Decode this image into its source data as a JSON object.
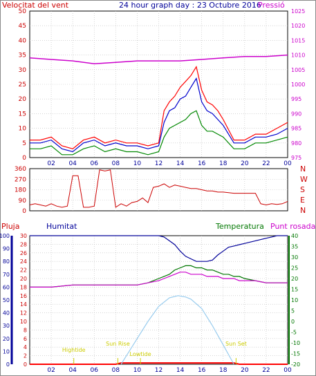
{
  "header": {
    "left_label": "Velocitat del vent",
    "title": "24 hour graph day : 23 Octubre 2016",
    "right_label": "Pressió"
  },
  "colors": {
    "wind_max": "#ff0000",
    "wind_avg": "#0000cc",
    "wind_min": "#008800",
    "pressure": "#cc00cc",
    "direction": "#cc0000",
    "humidity": "#000099",
    "temperature": "#007700",
    "dewpoint": "#cc00cc",
    "rain": "#ff0000",
    "solar": "#99ccee",
    "annotation": "#cccc00"
  },
  "x_ticks": [
    "02",
    "04",
    "06",
    "08",
    "10",
    "12",
    "14",
    "16",
    "18",
    "20",
    "22",
    "00"
  ],
  "wind_chart": {
    "left_ticks": [
      "0",
      "5",
      "10",
      "15",
      "20",
      "25",
      "30",
      "35",
      "40",
      "45",
      "50"
    ],
    "right_ticks": [
      "975",
      "980",
      "985",
      "990",
      "995",
      "1000",
      "1005",
      "1010",
      "1015",
      "1020",
      "1025"
    ]
  },
  "direction_chart": {
    "left_ticks": [
      "0",
      "90",
      "180",
      "270",
      "360"
    ],
    "compass": [
      "N",
      "W",
      "S",
      "E",
      "N"
    ]
  },
  "weather_chart": {
    "rain_label": "Pluja",
    "humidity_label": "Humitat",
    "temperature_label": "Temperatura",
    "dewpoint_label": "Punt rosada",
    "rain_ticks": [
      "0",
      "2",
      "4",
      "6",
      "8",
      "10",
      "12",
      "14",
      "16",
      "18",
      "20",
      "22",
      "24",
      "26",
      "28",
      "30"
    ],
    "humidity_ticks": [
      "0",
      "10",
      "20",
      "30",
      "40",
      "50",
      "60",
      "70",
      "80",
      "90",
      "100"
    ],
    "temperature_ticks": [
      "-20",
      "-15",
      "-10",
      "-5",
      "0",
      "5",
      "10",
      "15",
      "20",
      "25",
      "30",
      "35",
      "40"
    ],
    "annotations": {
      "high_tide": "Hightide",
      "low_tide": "Lowtide",
      "sunrise": "Sun Rise",
      "sunset": "Sun Set"
    }
  },
  "chart_data": [
    {
      "type": "line",
      "title": "24 hour graph day : 23 Octubre 2016",
      "x_unit": "hour",
      "xlim": [
        0,
        24
      ],
      "y_left": {
        "label": "Velocitat del vent",
        "lim": [
          0,
          50
        ]
      },
      "y_right": {
        "label": "Pressió",
        "lim": [
          975,
          1025
        ]
      },
      "series": [
        {
          "axis": "left",
          "color": "#ff0000",
          "x": [
            0,
            1,
            2,
            3,
            4,
            5,
            6,
            7,
            8,
            9,
            10,
            11,
            12,
            12.5,
            13,
            13.5,
            14,
            14.5,
            15,
            15.5,
            16,
            16.5,
            17,
            17.5,
            18,
            19,
            20,
            21,
            22,
            23,
            24
          ],
          "values": [
            6,
            6,
            7,
            4,
            3,
            6,
            7,
            5,
            6,
            5,
            5,
            4,
            5,
            16,
            19,
            21,
            24,
            26,
            28,
            31,
            23,
            19,
            18,
            16,
            13,
            6,
            6,
            8,
            8,
            10,
            12
          ]
        },
        {
          "axis": "left",
          "color": "#0000cc",
          "x": [
            0,
            1,
            2,
            3,
            4,
            5,
            6,
            7,
            8,
            9,
            10,
            11,
            12,
            12.5,
            13,
            13.5,
            14,
            14.5,
            15,
            15.5,
            16,
            16.5,
            17,
            17.5,
            18,
            19,
            20,
            21,
            22,
            23,
            24
          ],
          "values": [
            5,
            5,
            6,
            3,
            2,
            5,
            6,
            4,
            5,
            4,
            4,
            3,
            4,
            12,
            16,
            17,
            20,
            21,
            24,
            27,
            19,
            16,
            15,
            13,
            11,
            5,
            5,
            7,
            7,
            8,
            10
          ]
        },
        {
          "axis": "left",
          "color": "#008800",
          "x": [
            0,
            1,
            2,
            3,
            4,
            5,
            6,
            7,
            8,
            9,
            10,
            11,
            12,
            12.5,
            13,
            13.5,
            14,
            14.5,
            15,
            15.5,
            16,
            16.5,
            17,
            17.5,
            18,
            19,
            20,
            21,
            22,
            23,
            24
          ],
          "values": [
            3,
            3,
            4,
            1,
            1,
            3,
            4,
            2,
            3,
            2,
            2,
            1,
            2,
            7,
            10,
            11,
            12,
            13,
            15,
            16,
            11,
            9,
            9,
            8,
            7,
            3,
            3,
            5,
            5,
            6,
            7
          ]
        },
        {
          "axis": "right",
          "color": "#cc00cc",
          "x": [
            0,
            2,
            4,
            6,
            8,
            10,
            12,
            14,
            16,
            18,
            20,
            22,
            24
          ],
          "values": [
            1009,
            1008.5,
            1008,
            1007,
            1007.5,
            1008,
            1008,
            1008,
            1008.5,
            1009,
            1009.5,
            1009.5,
            1010
          ]
        }
      ]
    },
    {
      "type": "line",
      "x_unit": "hour",
      "xlim": [
        0,
        24
      ],
      "ylim": [
        0,
        360
      ],
      "series": [
        {
          "color": "#cc0000",
          "x": [
            0,
            0.5,
            1,
            1.5,
            2,
            2.5,
            3,
            3.5,
            4,
            4.5,
            5,
            5.5,
            6,
            6.5,
            7,
            7.5,
            8,
            8.5,
            9,
            9.5,
            10,
            10.5,
            11,
            11.5,
            12,
            12.5,
            13,
            13.5,
            14,
            14.5,
            15,
            15.5,
            16,
            16.5,
            17,
            17.5,
            18,
            18.5,
            19,
            19.5,
            20,
            20.5,
            21,
            21.5,
            22,
            22.5,
            23,
            23.5,
            24
          ],
          "values": [
            50,
            60,
            50,
            40,
            60,
            40,
            30,
            40,
            300,
            300,
            30,
            30,
            40,
            350,
            340,
            350,
            30,
            60,
            40,
            70,
            80,
            110,
            70,
            200,
            210,
            230,
            200,
            220,
            210,
            200,
            190,
            190,
            180,
            170,
            170,
            160,
            160,
            155,
            150,
            150,
            150,
            150,
            150,
            60,
            50,
            60,
            55,
            60,
            80
          ]
        }
      ]
    },
    {
      "type": "line",
      "x_unit": "hour",
      "xlim": [
        0,
        24
      ],
      "y_left_rain": {
        "label": "Pluja",
        "lim": [
          0,
          30
        ]
      },
      "y_left_humidity": {
        "label": "Humitat",
        "lim": [
          0,
          100
        ]
      },
      "y_right": {
        "label": "Temperatura",
        "lim": [
          -20,
          40
        ]
      },
      "series": [
        {
          "name": "Humitat",
          "axis": "humidity",
          "color": "#000099",
          "x": [
            0,
            2,
            4,
            6,
            8,
            10,
            12,
            12.5,
            13,
            13.5,
            14,
            14.5,
            15,
            15.5,
            16,
            16.5,
            17,
            17.5,
            18,
            18.5,
            19,
            19.5,
            20,
            20.5,
            21,
            21.5,
            22,
            22.5,
            23,
            23.5,
            24
          ],
          "values": [
            100,
            100,
            100,
            100,
            100,
            100,
            100,
            99,
            96,
            93,
            88,
            84,
            82,
            80,
            80,
            80,
            81,
            85,
            88,
            91,
            92,
            93,
            94,
            95,
            96,
            97,
            98,
            99,
            100,
            100,
            100
          ]
        },
        {
          "name": "Temperatura",
          "axis": "temperature",
          "color": "#007700",
          "x": [
            0,
            2,
            4,
            6,
            8,
            10,
            11,
            12,
            12.5,
            13,
            13.5,
            14,
            14.5,
            15,
            15.5,
            16,
            16.5,
            17,
            17.5,
            18,
            18.5,
            19,
            19.5,
            20,
            21,
            22,
            23,
            24
          ],
          "values": [
            16,
            16,
            17,
            17,
            17,
            17,
            18,
            20,
            21,
            22,
            24,
            25,
            26,
            26,
            25,
            25,
            24,
            24,
            23,
            22,
            22,
            21,
            21,
            20,
            19,
            18,
            18,
            18
          ]
        },
        {
          "name": "Punt rosada",
          "axis": "temperature",
          "color": "#cc00cc",
          "x": [
            0,
            2,
            4,
            6,
            8,
            10,
            11,
            12,
            12.5,
            13,
            13.5,
            14,
            14.5,
            15,
            15.5,
            16,
            16.5,
            17,
            17.5,
            18,
            18.5,
            19,
            19.5,
            20,
            21,
            22,
            23,
            24
          ],
          "values": [
            16,
            16,
            17,
            17,
            17,
            17,
            18,
            19,
            20,
            21,
            22,
            23,
            23,
            22,
            22,
            22,
            21,
            21,
            21,
            20,
            20,
            20,
            19,
            19,
            19,
            18,
            18,
            18
          ]
        },
        {
          "name": "Pluja",
          "axis": "rain",
          "color": "#ff0000",
          "x": [
            0,
            8,
            8.5,
            19,
            19.5,
            24
          ],
          "values": [
            0,
            0,
            0.3,
            0.3,
            0,
            0
          ]
        },
        {
          "name": "Solar",
          "axis": "rain",
          "color": "#99ccee",
          "x": [
            8.5,
            9,
            10,
            11,
            12,
            13,
            13.8,
            14.5,
            15,
            16,
            17,
            18,
            19
          ],
          "values": [
            0,
            2,
            6,
            10,
            13.5,
            15.5,
            16,
            15.7,
            15.2,
            13,
            9,
            4.5,
            0
          ]
        }
      ],
      "annotations": [
        {
          "label": "Hightide",
          "x": 4.1
        },
        {
          "label": "Sun Rise",
          "x": 8.2
        },
        {
          "label": "Lowtide",
          "x": 10.3
        },
        {
          "label": "Sun Set",
          "x": 19.2
        }
      ]
    }
  ]
}
